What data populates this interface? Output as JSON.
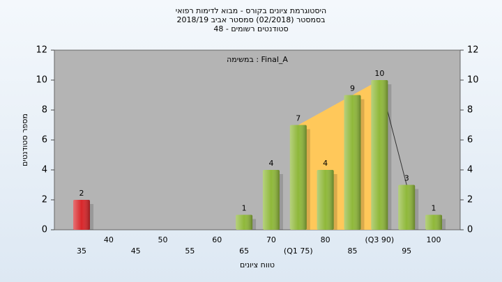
{
  "chart_data": {
    "type": "bar",
    "title": [
      "היסטוגרמת ציונים בקורס - מבוא לדימות רפואי",
      "בסמסטר  (02/2018)  סמסטר אביב 2018/19",
      "סטודנטים רשומים - 48"
    ],
    "annotation": "במשימה : Final_A",
    "xlabel": "טווח ציונים",
    "ylabel": "מספר סטודנטים",
    "categories": [
      "35",
      "40",
      "45",
      "50",
      "55",
      "60",
      "65",
      "70",
      "(Q1 75)",
      "80",
      "85",
      "(Q3 90)",
      "95",
      "100"
    ],
    "values": [
      2,
      0,
      0,
      0,
      0,
      0,
      1,
      4,
      7,
      4,
      9,
      10,
      3,
      1
    ],
    "colors": [
      "#d8262a",
      "#8fb83a",
      "#8fb83a",
      "#8fb83a",
      "#8fb83a",
      "#8fb83a",
      "#8fb83a",
      "#8fb83a",
      "#8fb83a",
      "#8fb83a",
      "#8fb83a",
      "#8fb83a",
      "#8fb83a",
      "#8fb83a"
    ],
    "ylim": [
      0,
      12
    ],
    "yticks": [
      0,
      2,
      4,
      6,
      8,
      10,
      12
    ],
    "y2lim": [
      0,
      12
    ],
    "y2ticks": [
      0,
      2,
      4,
      6,
      8,
      10,
      12
    ],
    "area_color": "#ffc85a"
  }
}
